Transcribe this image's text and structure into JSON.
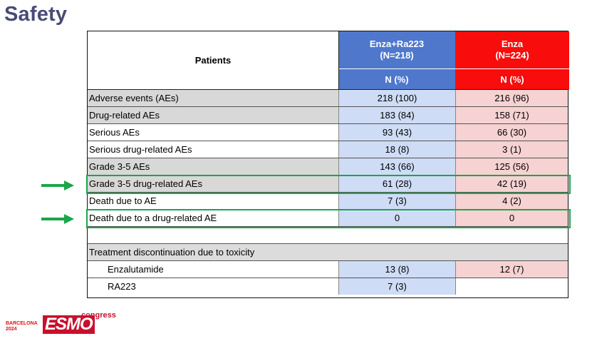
{
  "title": "Safety",
  "header": {
    "patients_label": "Patients",
    "group1_name": "Enza+Ra223",
    "group1_n": "(N=218)",
    "group2_name": "Enza",
    "group2_n": "(N=224)",
    "unit1": "N (%)",
    "unit2": "N (%)"
  },
  "rows": [
    {
      "label": "Adverse events (AEs)",
      "v1": "218 (100)",
      "v2": "216 (96)"
    },
    {
      "label": "Drug-related AEs",
      "v1": "183 (84)",
      "v2": "158 (71)"
    },
    {
      "label": "Serious AEs",
      "v1": "93 (43)",
      "v2": "66 (30)"
    },
    {
      "label": "Serious drug-related AEs",
      "v1": "18 (8)",
      "v2": "3 (1)"
    },
    {
      "label": "Grade 3-5 AEs",
      "v1": "143 (66)",
      "v2": "125 (56)"
    },
    {
      "label": "Grade 3-5 drug-related AEs",
      "v1": "61 (28)",
      "v2": "42 (19)"
    },
    {
      "label": "Death due to AE",
      "v1": "7 (3)",
      "v2": "4 (2)"
    },
    {
      "label": "Death due to a drug-related AE",
      "v1": "0",
      "v2": "0"
    },
    {
      "label": "",
      "v1": "",
      "v2": ""
    },
    {
      "label": "Treatment discontinuation due to toxicity",
      "v1": "",
      "v2": ""
    },
    {
      "label": "Enzalutamide",
      "v1": "13 (8)",
      "v2": "12 (7)"
    },
    {
      "label": "RA223",
      "v1": "7 (3)",
      "v2": ""
    }
  ],
  "logo": {
    "city": "BARCELONA",
    "year": "2024",
    "brand": "ESMO",
    "suffix": "congress"
  },
  "colors": {
    "group1": "#4f77cc",
    "group2": "#f80c0c",
    "highlight": "#1aa64a",
    "title": "#4a4a78"
  }
}
